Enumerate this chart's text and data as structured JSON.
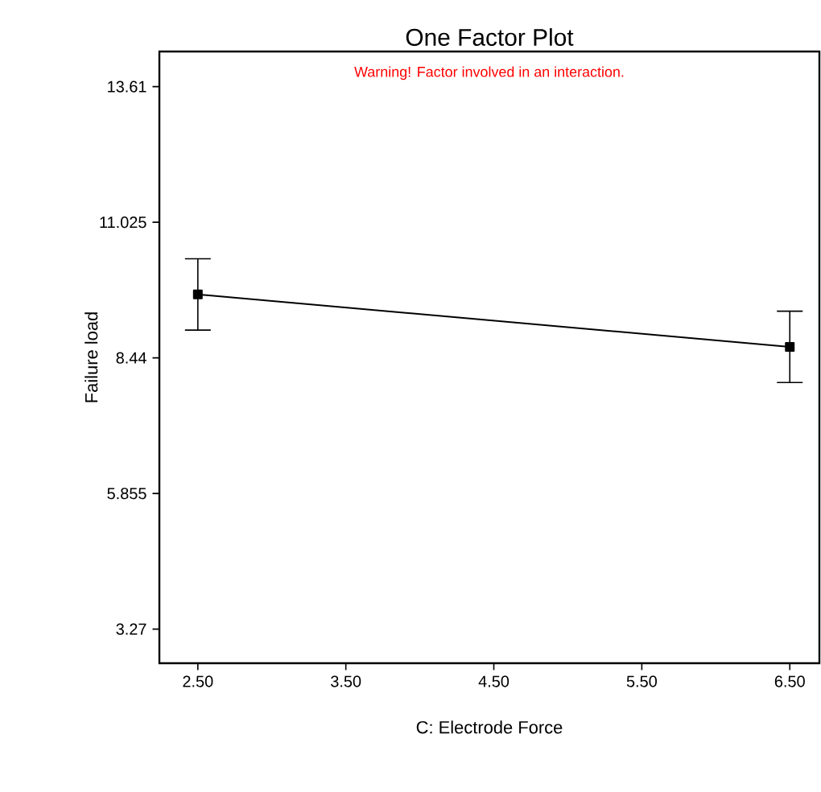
{
  "chart_data": {
    "type": "line",
    "title": "One Factor Plot",
    "annotations": [
      "Warning! Factor involved in an interaction."
    ],
    "xlabel": "C: Electrode Force",
    "ylabel": "Failure load",
    "x": [
      2.5,
      6.5
    ],
    "series": [
      {
        "color": "#000000",
        "values": [
          9.65,
          8.65
        ],
        "errors": [
          0.68,
          0.68
        ]
      }
    ],
    "xlim": [
      2.24,
      6.7
    ],
    "ylim": [
      2.62,
      14.28
    ],
    "xticks": [
      {
        "value": 2.5,
        "label": "2.50"
      },
      {
        "value": 3.5,
        "label": "3.50"
      },
      {
        "value": 4.5,
        "label": "4.50"
      },
      {
        "value": 5.5,
        "label": "5.50"
      },
      {
        "value": 6.5,
        "label": "6.50"
      }
    ],
    "yticks": [
      3.27,
      5.855,
      8.44,
      11.025,
      13.61
    ],
    "marker": "square",
    "line_style": "solid"
  }
}
